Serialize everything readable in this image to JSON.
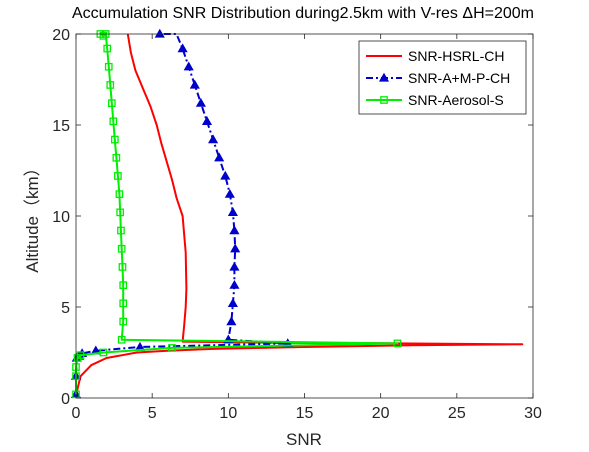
{
  "chart_data": {
    "type": "line",
    "title": "Accumulation SNR Distribution during2.5km with V-res ΔH=200m",
    "xlabel": "SNR",
    "ylabel": "Altitude（km）",
    "xlim": [
      0,
      30
    ],
    "ylim": [
      0,
      20
    ],
    "xticks": [
      0,
      5,
      10,
      15,
      20,
      25,
      30
    ],
    "yticks": [
      0,
      5,
      10,
      15,
      20
    ],
    "grid": false,
    "legend_position": "top-right",
    "series": [
      {
        "name": "SNR-HSRL-CH",
        "color": "#ff0000",
        "marker": "none",
        "dash": "solid",
        "x": [
          0.0,
          0.1,
          0.3,
          1.0,
          2.0,
          4.0,
          6.0,
          9.0,
          15.0,
          22.0,
          29.3,
          21.0,
          12.0,
          7.0,
          7.1,
          7.2,
          7.25,
          7.2,
          7.0,
          6.6,
          6.3,
          5.6,
          5.3,
          4.9,
          4.4,
          3.9,
          3.6,
          3.4
        ],
        "y": [
          0.0,
          0.5,
          1.2,
          1.8,
          2.2,
          2.5,
          2.6,
          2.7,
          2.8,
          2.9,
          2.95,
          3.0,
          3.05,
          3.1,
          4.0,
          5.0,
          6.0,
          8.0,
          10.0,
          11.0,
          12.0,
          14.0,
          15.0,
          16.0,
          17.0,
          18.0,
          19.0,
          20.0
        ]
      },
      {
        "name": "SNR-A+M-P-CH",
        "color": "#0000cc",
        "marker": "triangle",
        "dash": "dash-dot",
        "x": [
          0.0,
          0.0,
          0.05,
          0.2,
          0.4,
          1.3,
          4.2,
          13.9,
          10.0,
          10.2,
          10.3,
          10.4,
          10.4,
          10.45,
          10.4,
          10.3,
          10.1,
          9.8,
          9.4,
          9.0,
          8.6,
          8.2,
          7.8,
          7.4,
          7.0,
          6.6,
          6.2,
          5.9,
          5.5
        ],
        "y": [
          0.2,
          1.2,
          2.2,
          2.3,
          2.45,
          2.6,
          2.8,
          3.0,
          3.2,
          4.2,
          5.2,
          6.2,
          7.2,
          8.2,
          9.2,
          10.2,
          11.2,
          12.2,
          13.2,
          14.2,
          15.2,
          16.2,
          17.2,
          18.2,
          19.2,
          20.2,
          21.2,
          22.2,
          20.0
        ]
      },
      {
        "name": "SNR-Aerosol-S",
        "color": "#00ee00",
        "marker": "square",
        "dash": "solid",
        "x": [
          0.0,
          0.0,
          0.0,
          0.1,
          0.3,
          1.8,
          6.3,
          21.1,
          3.0,
          3.1,
          3.1,
          3.1,
          3.05,
          3.0,
          2.95,
          2.9,
          2.85,
          2.75,
          2.65,
          2.55,
          2.45,
          2.35,
          2.25,
          2.15,
          2.05,
          1.95,
          1.8,
          1.6
        ],
        "y": [
          0.2,
          1.2,
          1.7,
          2.2,
          2.35,
          2.5,
          2.75,
          3.0,
          3.2,
          4.2,
          5.2,
          6.2,
          7.2,
          8.2,
          9.2,
          10.2,
          11.2,
          12.2,
          13.2,
          14.2,
          15.2,
          16.2,
          17.2,
          18.2,
          19.2,
          20.0,
          19.9,
          20.0
        ]
      }
    ]
  }
}
